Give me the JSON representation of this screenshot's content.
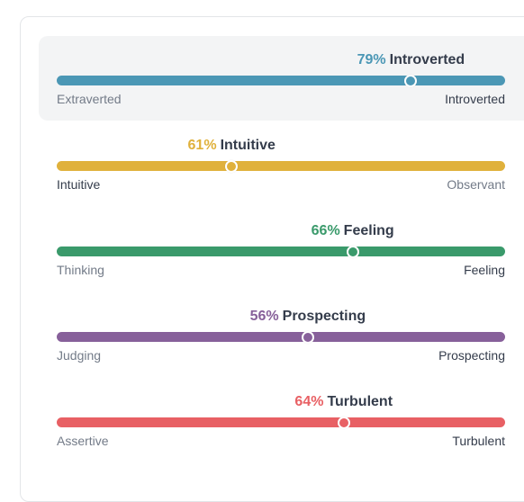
{
  "traits": [
    {
      "percent": "79%",
      "dominant": "Introverted",
      "left_label": "Extraverted",
      "right_label": "Introverted",
      "value": 0.79,
      "dominant_side": "right",
      "color": "#4b97b5",
      "active": true
    },
    {
      "percent": "61%",
      "dominant": "Intuitive",
      "left_label": "Intuitive",
      "right_label": "Observant",
      "value": 0.39,
      "dominant_side": "left",
      "color": "#e0b13c",
      "active": false
    },
    {
      "percent": "66%",
      "dominant": "Feeling",
      "left_label": "Thinking",
      "right_label": "Feeling",
      "value": 0.66,
      "dominant_side": "right",
      "color": "#3a9a6b",
      "active": false
    },
    {
      "percent": "56%",
      "dominant": "Prospecting",
      "left_label": "Judging",
      "right_label": "Prospecting",
      "value": 0.56,
      "dominant_side": "right",
      "color": "#87609a",
      "active": false
    },
    {
      "percent": "64%",
      "dominant": "Turbulent",
      "left_label": "Assertive",
      "right_label": "Turbulent",
      "value": 0.64,
      "dominant_side": "right",
      "color": "#e86064",
      "active": false
    }
  ]
}
